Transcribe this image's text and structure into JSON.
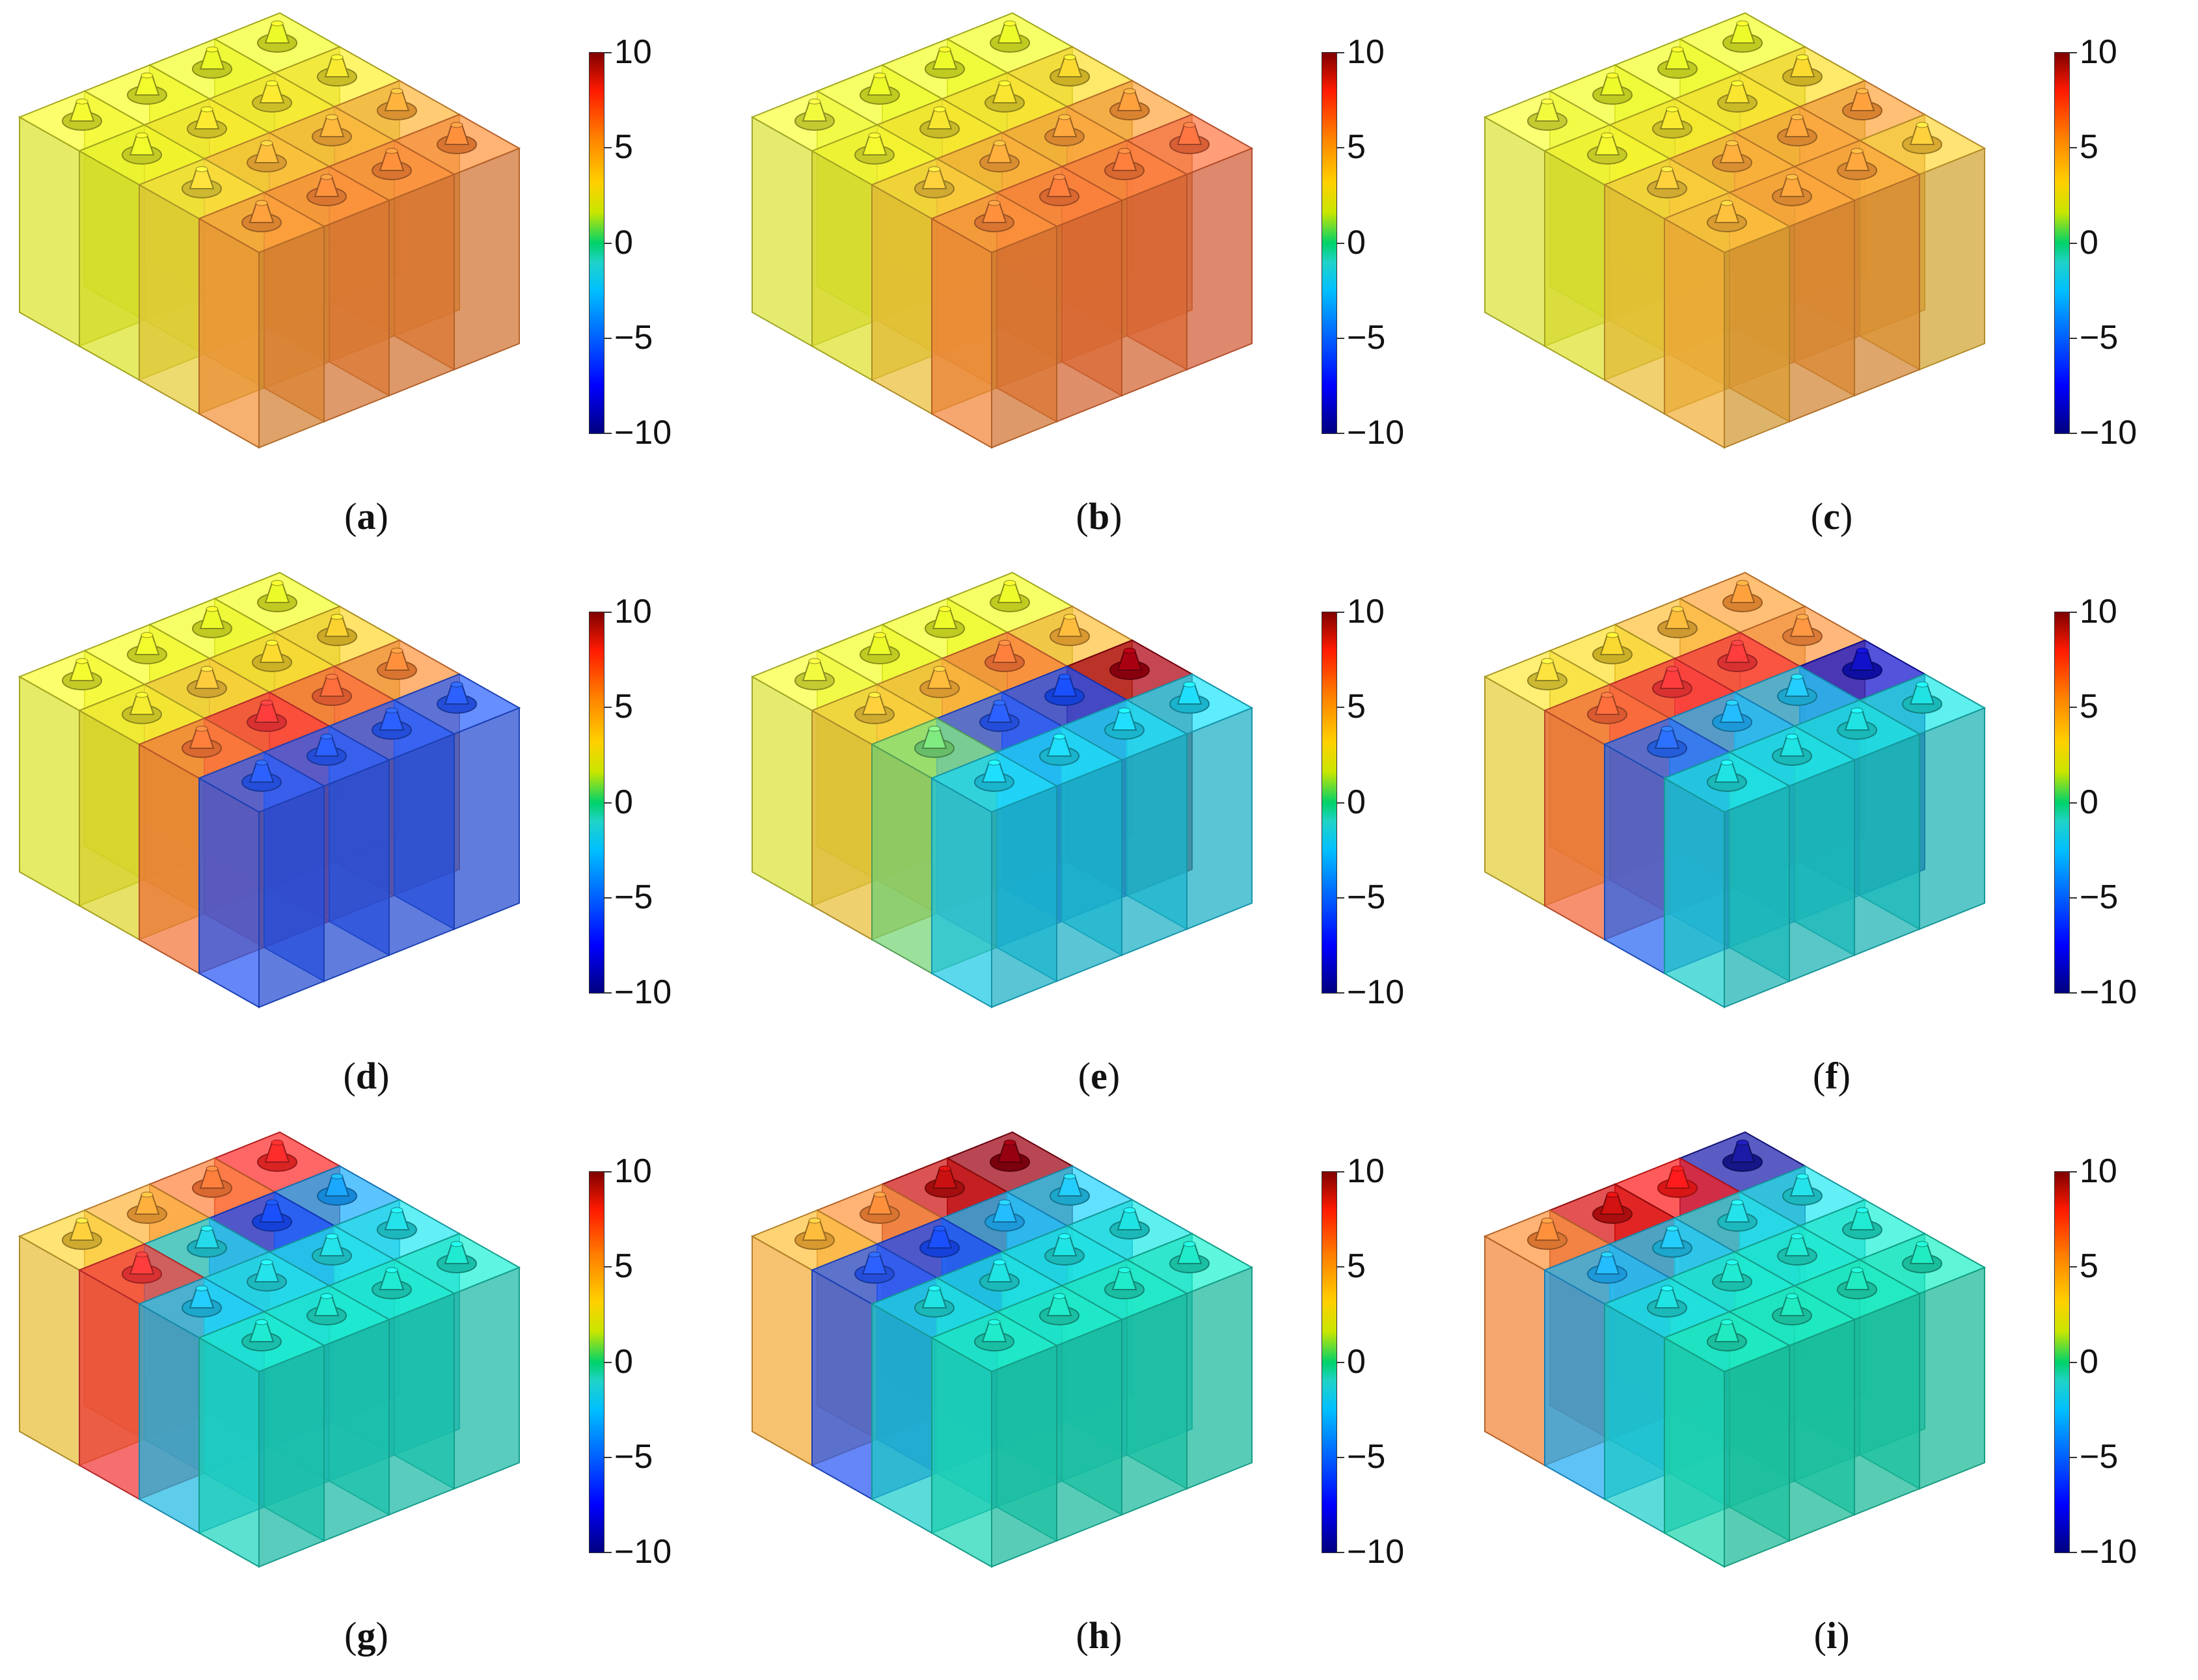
{
  "figure": {
    "colorbar": {
      "ticks": [
        "10",
        "5",
        "0",
        "−5",
        "−10"
      ],
      "range": [
        -10,
        10
      ]
    },
    "panels": [
      {
        "letter": "a",
        "colors": [
          "#e8ef2e",
          "#e6ef2a",
          "#f2d83a",
          "#ff9a3a",
          "#e6ef2a",
          "#f0e02e",
          "#ffb83a",
          "#ff8c3a",
          "#e2ee28",
          "#f0e02e",
          "#ffb03a",
          "#ff8a3a",
          "#e2ee28",
          "#ecdf2e",
          "#ffab3a",
          "#ff8a3a"
        ]
      },
      {
        "letter": "b",
        "colors": [
          "#e6ef3a",
          "#eaec2e",
          "#f6c83a",
          "#ff8a3a",
          "#e2ef28",
          "#ecdc2e",
          "#ffa83a",
          "#ff7a3a",
          "#e2ef28",
          "#eedb2e",
          "#ffa03a",
          "#ff7a3a",
          "#e2ef28",
          "#f0d02e",
          "#ff9a3a",
          "#ff7040"
        ]
      },
      {
        "letter": "c",
        "colors": [
          "#e6ef3a",
          "#eaec2e",
          "#f6c83a",
          "#ffb83a",
          "#e2ef28",
          "#eee02e",
          "#ffa83a",
          "#ffa03a",
          "#e2ef28",
          "#eedb2e",
          "#ffa03a",
          "#ffa03a",
          "#e2ef28",
          "#f0d02e",
          "#ff9a3a",
          "#ffc83a"
        ]
      },
      {
        "letter": "d",
        "colors": [
          "#e8ef2e",
          "#eae22e",
          "#ff7a3a",
          "#2a5cff",
          "#e6ef2a",
          "#f5c23a",
          "#ff3a3a",
          "#2a5cff",
          "#e2ee28",
          "#f0d02e",
          "#ff6a3a",
          "#2a5cff",
          "#e2ee28",
          "#f0c82e",
          "#ff8a3a",
          "#2a5cff"
        ]
      },
      {
        "letter": "e",
        "colors": [
          "#e6ef3a",
          "#f4c83a",
          "#7ae07a",
          "#1ed4f0",
          "#e2ef28",
          "#ffb43a",
          "#2a5cff",
          "#1ed4f0",
          "#e2ef28",
          "#ff7a3a",
          "#1a4cff",
          "#1ed4f0",
          "#e2ef28",
          "#ffb43a",
          "#a00010",
          "#1ed4f0"
        ]
      },
      {
        "letter": "f",
        "colors": [
          "#f0d83a",
          "#ff6a3a",
          "#2a6cff",
          "#1ed8d8",
          "#eecf2e",
          "#ff3a3a",
          "#22b4ff",
          "#1ed8d8",
          "#f4b43a",
          "#ff3a3a",
          "#22c4f4",
          "#1ed8d8",
          "#ff9a3a",
          "#ff9040",
          "#1010c0",
          "#1ed8d8"
        ]
      },
      {
        "letter": "g",
        "colors": [
          "#f4c83a",
          "#ff3a3a",
          "#22c4f0",
          "#1ee0c8",
          "#ffa83a",
          "#22d0e0",
          "#22d8e0",
          "#1ee0c8",
          "#ff7a3a",
          "#1a4cff",
          "#22d8e0",
          "#1ee0c8",
          "#ff2a2a",
          "#1aa0ff",
          "#22d8e0",
          "#1ee0c8"
        ]
      },
      {
        "letter": "h",
        "colors": [
          "#ffb43a",
          "#2a5cff",
          "#1ed8d8",
          "#1ee0c0",
          "#ff8a3a",
          "#1a4cff",
          "#1ed8d8",
          "#1ee0c0",
          "#c01010",
          "#22b4ff",
          "#1ed8d8",
          "#1ee0c0",
          "#900010",
          "#22c4f0",
          "#1ed8d8",
          "#1ee0c0"
        ]
      },
      {
        "letter": "i",
        "colors": [
          "#ff8a3a",
          "#22b4ff",
          "#1ed8d8",
          "#1ee0b8",
          "#c81010",
          "#22c4f0",
          "#1ee0c8",
          "#1ee0b8",
          "#ff1a1a",
          "#22d8e0",
          "#1ee0c8",
          "#1ee0b8",
          "#1a1aa0",
          "#22d8e0",
          "#1ee0c8",
          "#1ee0b8"
        ]
      }
    ]
  }
}
